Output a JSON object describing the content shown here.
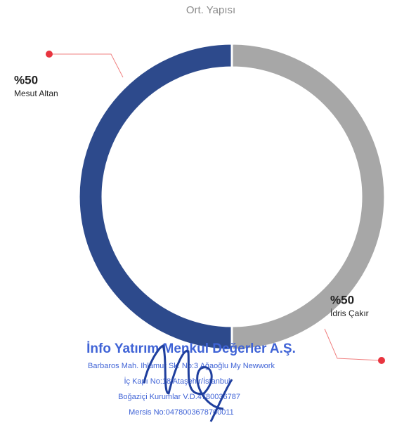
{
  "chart_data": {
    "type": "donut",
    "title": "Ort. Yapısı",
    "categories": [
      "İdris Çakır",
      "Mesut Altan"
    ],
    "values": [
      50,
      50
    ],
    "value_labels": [
      "%50",
      "%50"
    ],
    "colors": [
      "#a7a7a7",
      "#2d4a8c"
    ],
    "annotations": [
      "İnfo Yatırım Menkul Değerler A.Ş.",
      "Barbaros Mah. Ihlamur Sk. No:3 Ağaoğlu My Newwork",
      "İç Kapı No:18 Ataşehir/İstanbul",
      "Boğaziçi Kurumlar V.D.4780036787",
      "Mersis No:0478003678700011"
    ]
  }
}
